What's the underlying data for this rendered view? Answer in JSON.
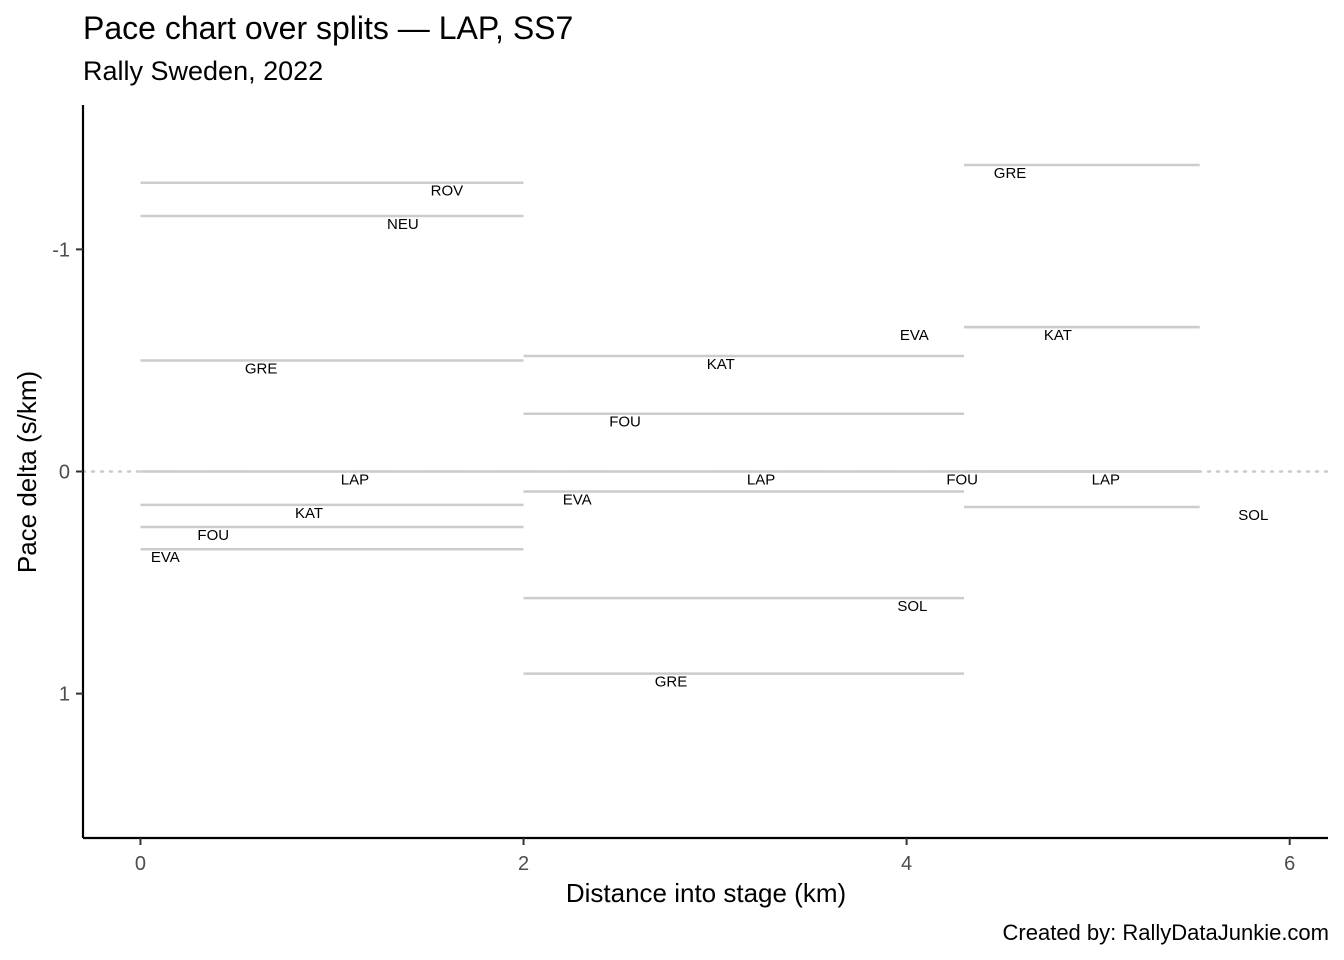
{
  "chart_data": {
    "type": "line",
    "title": "Pace chart over splits — LAP, SS7",
    "subtitle": "Rally Sweden, 2022",
    "xlabel": "Distance into stage (km)",
    "ylabel": "Pace delta (s/km)",
    "caption": "Created by: RallyDataJunkie.com",
    "xlim": [
      -0.3,
      6.2
    ],
    "ylim": [
      1.65,
      -1.65
    ],
    "y_reversed": true,
    "x_ticks": [
      0,
      2,
      4,
      6
    ],
    "y_ticks": [
      -1,
      0,
      1
    ],
    "reference_line": 0,
    "grid": false,
    "segments": [
      {
        "driver": "ROV",
        "x_start": 0,
        "x_end": 2,
        "pace": -1.3,
        "label_x": 1.6
      },
      {
        "driver": "NEU",
        "x_start": 0,
        "x_end": 2,
        "pace": -1.15,
        "label_x": 1.37
      },
      {
        "driver": "GRE",
        "x_start": 0,
        "x_end": 2,
        "pace": -0.5,
        "label_x": 0.63
      },
      {
        "driver": "LAP",
        "x_start": 0,
        "x_end": 2,
        "pace": 0.0,
        "label_x": 1.12
      },
      {
        "driver": "KAT",
        "x_start": 0,
        "x_end": 2,
        "pace": 0.15,
        "label_x": 0.88
      },
      {
        "driver": "FOU",
        "x_start": 0,
        "x_end": 2,
        "pace": 0.25,
        "label_x": 0.38
      },
      {
        "driver": "EVA",
        "x_start": 0,
        "x_end": 2,
        "pace": 0.35,
        "label_x": 0.13
      },
      {
        "driver": "KAT",
        "x_start": 2,
        "x_end": 4.3,
        "pace": -0.52,
        "label_x": 3.03
      },
      {
        "driver": "FOU",
        "x_start": 2,
        "x_end": 4.3,
        "pace": -0.26,
        "label_x": 2.53
      },
      {
        "driver": "LAP",
        "x_start": 2,
        "x_end": 4.3,
        "pace": 0.0,
        "label_x": 3.24
      },
      {
        "driver": "EVA",
        "x_start": 2,
        "x_end": 4.3,
        "pace": 0.09,
        "label_x": 2.28
      },
      {
        "driver": "SOL",
        "x_start": 2,
        "x_end": 4.3,
        "pace": 0.57,
        "label_x": 4.03
      },
      {
        "driver": "GRE",
        "x_start": 2,
        "x_end": 4.3,
        "pace": 0.91,
        "label_x": 2.77
      },
      {
        "driver": "GRE",
        "x_start": 4.3,
        "x_end": 5.53,
        "pace": -1.38,
        "label_x": 4.54
      },
      {
        "driver": "EVA",
        "x_start": 4.3,
        "x_end": 5.53,
        "pace": -0.65,
        "label_x": 4.04
      },
      {
        "driver": "KAT",
        "x_start": 4.3,
        "x_end": 5.53,
        "pace": -0.65,
        "label_x": 4.79
      },
      {
        "driver": "FOU",
        "x_start": 4.3,
        "x_end": 5.53,
        "pace": 0.0,
        "label_x": 4.29
      },
      {
        "driver": "LAP",
        "x_start": 4.3,
        "x_end": 5.53,
        "pace": 0.0,
        "label_x": 5.04
      },
      {
        "driver": "SOL",
        "x_start": 4.3,
        "x_end": 5.53,
        "pace": 0.16,
        "label_x": 5.81
      }
    ]
  },
  "colors": {
    "segment": "#cccccc",
    "reference_line": "#cccccc",
    "axis": "#000000",
    "tick_label": "#4d4d4d"
  }
}
